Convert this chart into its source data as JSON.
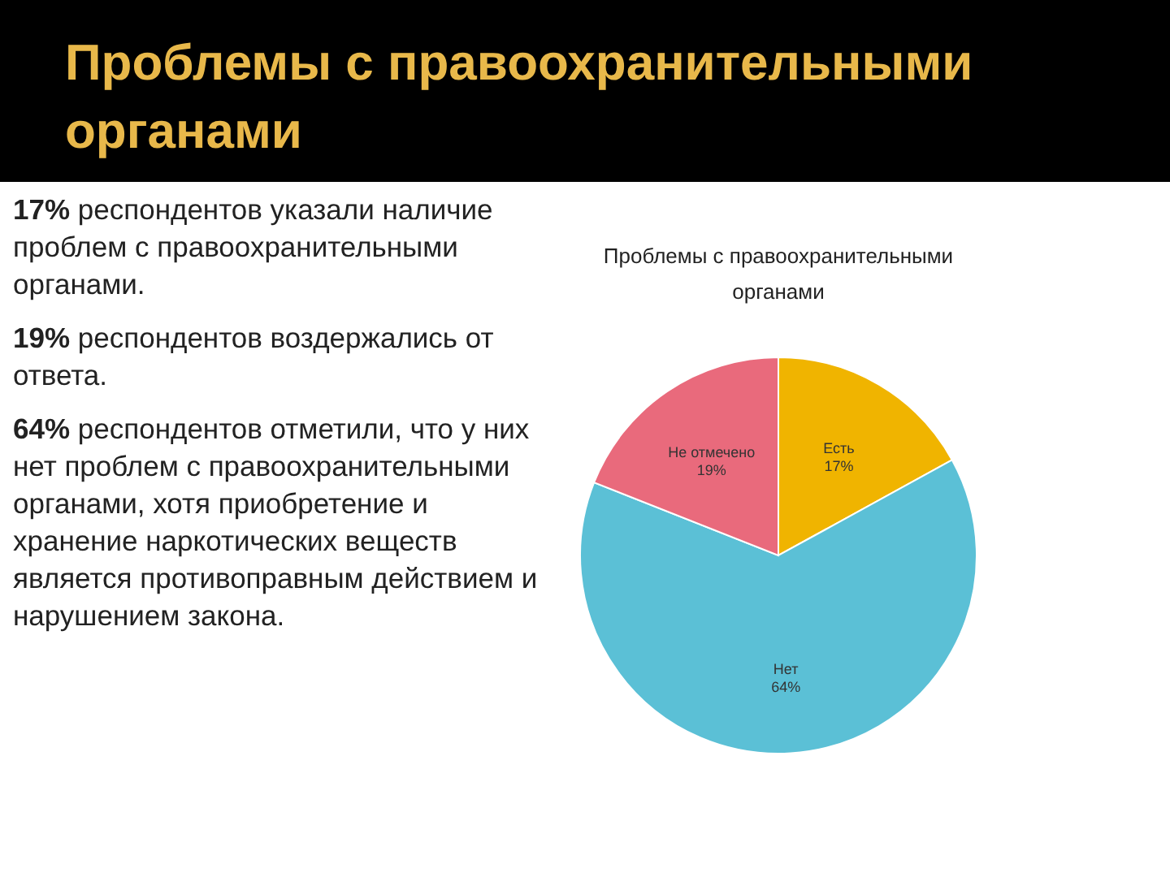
{
  "chart_data": {
    "type": "pie",
    "title": "Проблемы с правоохранительными органами",
    "subtitle": "Проблемы с правоохранительными органами",
    "categories": [
      "Есть",
      "Нет",
      "Не отмечено"
    ],
    "values": [
      17,
      64,
      19
    ],
    "colors": [
      "#f0b400",
      "#5bc0d6",
      "#e96a7c"
    ],
    "value_labels": [
      "17%",
      "64%",
      "19%"
    ],
    "annotations": [
      "17% респондентов указали наличие проблем с правоохранительными органами.",
      "19% респондентов воздержались от ответа.",
      "64% респондентов отметили, что у них нет проблем с правоохранительными органами, хотя приобретение и хранение наркотических веществ является противоправным действием и нарушением закона."
    ]
  }
}
